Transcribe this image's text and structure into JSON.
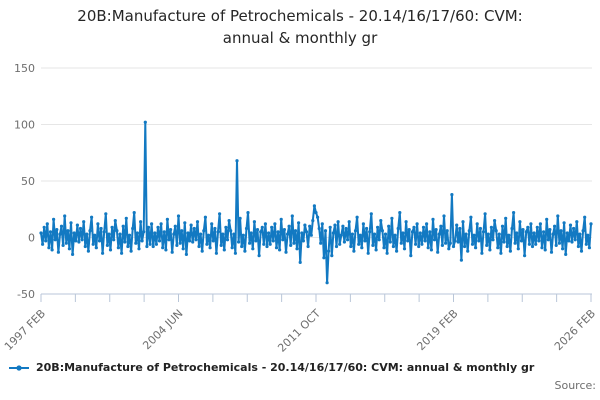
{
  "title": {
    "line1": "20B:Manufacture of Petrochemicals - 20.14/16/17/60: CVM:",
    "line2": "annual & monthly gr"
  },
  "legend": {
    "label": "20B:Manufacture of Petrochemicals - 20.14/16/17/60: CVM: annual & monthly gr"
  },
  "footer": {
    "source_label": "Source:"
  },
  "colors": {
    "line": "#1279c2",
    "grid": "#e6e6e6",
    "axis": "#b9c6d8",
    "tick_label": "#6e6e6e",
    "title_text": "#262626"
  },
  "chart_data": {
    "type": "line",
    "title": "20B:Manufacture of Petrochemicals - 20.14/16/17/60: CVM: annual & monthly gr",
    "xlabel": "",
    "ylabel": "",
    "x_start": "1997 FEB",
    "x_end": "2026 FEB",
    "x_tick_labels": [
      "1997 FEB",
      "2004 JUN",
      "2011 OCT",
      "2019 FEB",
      "2026 FEB"
    ],
    "x_tick_label_positions": [
      0,
      4,
      8,
      12,
      16
    ],
    "x_minor_tick_count": 17,
    "ylim": [
      -50,
      150
    ],
    "y_ticks": [
      -50,
      0,
      50,
      100,
      150
    ],
    "grid": "horizontal",
    "legend_position": "bottom-left",
    "series": [
      {
        "name": "20B:Manufacture of Petrochemicals - 20.14/16/17/60: CVM: annual & monthly gr",
        "values": [
          4,
          -6,
          9,
          -3,
          12,
          -9,
          5,
          -11,
          16,
          -2,
          7,
          -13,
          3,
          10,
          -7,
          19,
          -5,
          6,
          -10,
          13,
          -15,
          4,
          -3,
          11,
          -4,
          8,
          -2,
          14,
          -8,
          3,
          -12,
          6,
          18,
          -6,
          2,
          -9,
          12,
          -3,
          8,
          -14,
          5,
          21,
          -7,
          3,
          -11,
          9,
          -2,
          15,
          6,
          -9,
          3,
          -14,
          10,
          -4,
          17,
          -8,
          2,
          -12,
          8,
          22,
          -5,
          4,
          -10,
          14,
          -3,
          5,
          102,
          -8,
          9,
          -6,
          12,
          -8,
          4,
          -6,
          9,
          -3,
          12,
          -9,
          5,
          -11,
          16,
          -2,
          7,
          -13,
          3,
          10,
          -7,
          19,
          -5,
          6,
          -10,
          13,
          -15,
          4,
          -3,
          11,
          -4,
          8,
          -2,
          14,
          -8,
          3,
          -12,
          6,
          18,
          -6,
          2,
          -9,
          12,
          -3,
          8,
          -14,
          5,
          21,
          -7,
          3,
          -11,
          9,
          -2,
          15,
          6,
          -9,
          3,
          -14,
          68,
          -4,
          17,
          -8,
          2,
          -12,
          8,
          22,
          -5,
          4,
          -10,
          14,
          -3,
          7,
          -16,
          5,
          9,
          -6,
          12,
          -8,
          4,
          -6,
          9,
          -3,
          12,
          -9,
          5,
          -11,
          16,
          -2,
          7,
          -13,
          3,
          10,
          -7,
          19,
          -5,
          6,
          -10,
          13,
          -22,
          4,
          -3,
          11,
          5,
          -8,
          10,
          2,
          15,
          28,
          22,
          18,
          8,
          -5,
          12,
          -18,
          6,
          -40,
          -12,
          9,
          -16,
          4,
          11,
          -8,
          14,
          -6,
          2,
          10,
          -4,
          8,
          -2,
          14,
          -8,
          3,
          -12,
          6,
          18,
          -6,
          2,
          -9,
          12,
          -3,
          8,
          -14,
          5,
          21,
          -7,
          3,
          -11,
          9,
          -2,
          15,
          6,
          -9,
          3,
          -14,
          10,
          -4,
          17,
          -8,
          2,
          -12,
          8,
          22,
          -5,
          4,
          -10,
          14,
          -3,
          7,
          -16,
          5,
          9,
          -6,
          12,
          -8,
          4,
          -6,
          9,
          -3,
          12,
          -9,
          5,
          -11,
          16,
          -2,
          7,
          -13,
          3,
          10,
          -7,
          19,
          -5,
          6,
          -10,
          -5,
          38,
          -8,
          -3,
          11,
          -4,
          8,
          -20,
          14,
          -8,
          3,
          -12,
          6,
          18,
          -6,
          2,
          -9,
          12,
          -3,
          8,
          -14,
          5,
          21,
          -7,
          3,
          -11,
          9,
          -2,
          15,
          6,
          -9,
          3,
          -14,
          10,
          -4,
          17,
          -8,
          2,
          -12,
          8,
          22,
          -5,
          4,
          -10,
          14,
          -3,
          7,
          -16,
          5,
          9,
          -6,
          12,
          -8,
          4,
          -6,
          9,
          -3,
          12,
          -9,
          5,
          -11,
          16,
          -2,
          7,
          -13,
          3,
          10,
          -7,
          19,
          -5,
          6,
          -10,
          13,
          -15,
          4,
          -3,
          11,
          -4,
          8,
          -2,
          14,
          -8,
          3,
          -12,
          6,
          18,
          -6,
          2,
          -9,
          12
        ]
      }
    ]
  }
}
